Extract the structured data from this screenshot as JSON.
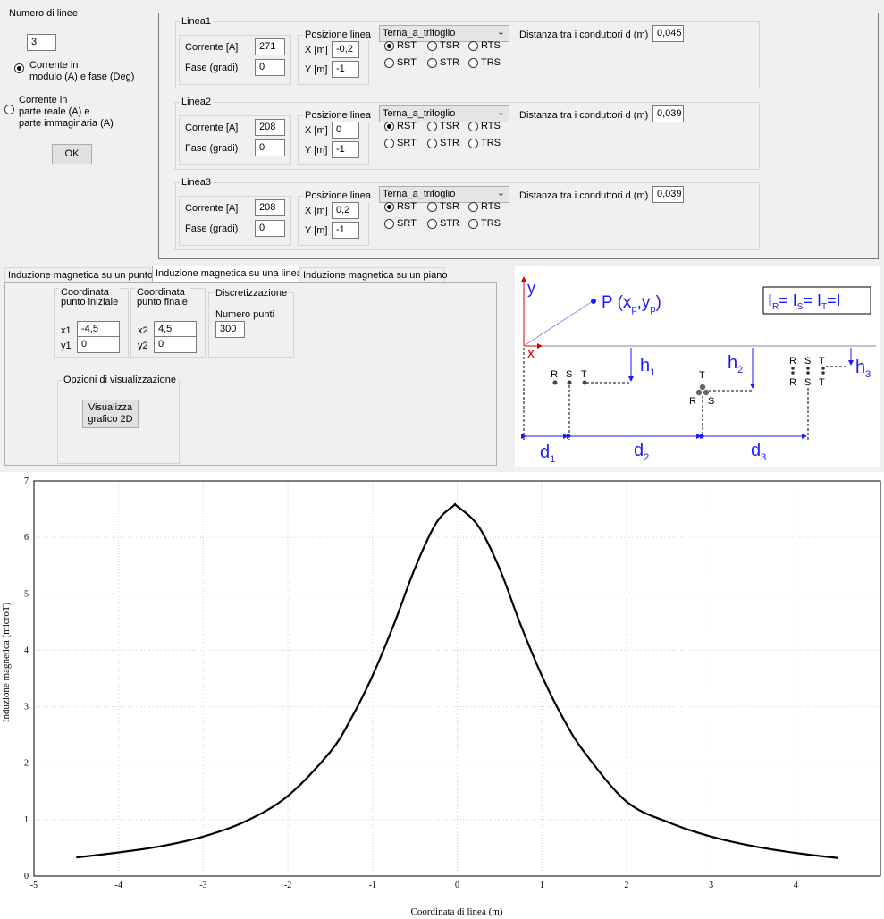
{
  "left_panel": {
    "num_lines_label": "Numero di linee",
    "num_lines_value": "3",
    "option1_label": "Corrente in\nmodulo (A) e fase (Deg)",
    "option2_label": "Corrente in\nparte reale (A) e\nparte immaginaria (A)",
    "ok_label": "OK"
  },
  "common": {
    "current_label": "Corrente [A]",
    "phase_label": "Fase (gradi)",
    "position_title": "Posizione linea",
    "x_label": "X [m]",
    "y_label": "Y [m]",
    "distance_label": "Distanza tra i conduttori d (m)",
    "phase_options": [
      "RST",
      "TSR",
      "RTS",
      "SRT",
      "STR",
      "TRS"
    ]
  },
  "lines": [
    {
      "title": "Linea1",
      "current": "271",
      "phase": "0",
      "x": "-0,2",
      "y": "-1",
      "config": "Terna_a_trifoglio",
      "distance": "0,045",
      "selected_option": "RST"
    },
    {
      "title": "Linea2",
      "current": "208",
      "phase": "0",
      "x": "0",
      "y": "-1",
      "config": "Terna_a_trifoglio",
      "distance": "0,039",
      "selected_option": "RST"
    },
    {
      "title": "Linea3",
      "current": "208",
      "phase": "0",
      "x": "0,2",
      "y": "-1",
      "config": "Terna_a_trifoglio",
      "distance": "0,039",
      "selected_option": "RST"
    }
  ],
  "tabs": [
    "Induzione magnetica su un punto",
    "Induzione magnetica su una linea",
    "Induzione magnetica su un piano"
  ],
  "active_tab": 1,
  "line_tab": {
    "start_title": "Coordinata\npunto iniziale",
    "end_title": "Coordinata\npunto finale",
    "disc_title": "Discretizzazione",
    "x1_label": "x1",
    "x1_value": "-4,5",
    "y1_label": "y1",
    "y1_value": "0",
    "x2_label": "x2",
    "x2_value": "4,5",
    "y2_label": "y2",
    "y2_value": "0",
    "num_points_label": "Numero punti",
    "num_points_value": "300",
    "viz_title": "Opzioni di visualizzazione",
    "viz_button": "Visualizza\ngrafico 2D"
  },
  "diagram": {
    "y_axis": "y",
    "x_axis": "x",
    "point_label": "P (x",
    "point_sub_p": "p",
    "point_mid": ",y",
    "point_close": ")",
    "formula_I": "I",
    "sub_R": "R",
    "sub_S": "S",
    "sub_T": "T",
    "eq": "= ",
    "final": "=I",
    "letter_R": "R",
    "letter_S": "S",
    "letter_T": "T",
    "h": "h",
    "d": "d",
    "sub_1": "1",
    "sub_2": "2",
    "sub_3": "3",
    "accent_color": "#1a1aff"
  },
  "chart_data": {
    "type": "line",
    "xlabel": "Coordinata di linea (m)",
    "ylabel": "Induzione magnetica (microT)",
    "xlim": [
      -5,
      5
    ],
    "ylim": [
      0,
      7
    ],
    "xticks": [
      -5,
      -4,
      -3,
      -2,
      -1,
      0,
      1,
      2,
      3,
      4
    ],
    "yticks": [
      0,
      1,
      2,
      3,
      4,
      5,
      6,
      7
    ],
    "grid": true,
    "x": [
      -4.5,
      -4.0,
      -3.5,
      -3.0,
      -2.5,
      -2.0,
      -1.5,
      -1.25,
      -1.0,
      -0.75,
      -0.5,
      -0.25,
      -0.05,
      0.0,
      0.25,
      0.5,
      0.75,
      1.0,
      1.25,
      1.5,
      2.0,
      2.5,
      3.0,
      3.5,
      4.0,
      4.5
    ],
    "y": [
      0.33,
      0.42,
      0.53,
      0.7,
      0.97,
      1.42,
      2.2,
      2.8,
      3.55,
      4.45,
      5.45,
      6.25,
      6.55,
      6.55,
      6.2,
      5.45,
      4.45,
      3.55,
      2.8,
      2.2,
      1.32,
      0.95,
      0.7,
      0.53,
      0.41,
      0.32
    ]
  }
}
